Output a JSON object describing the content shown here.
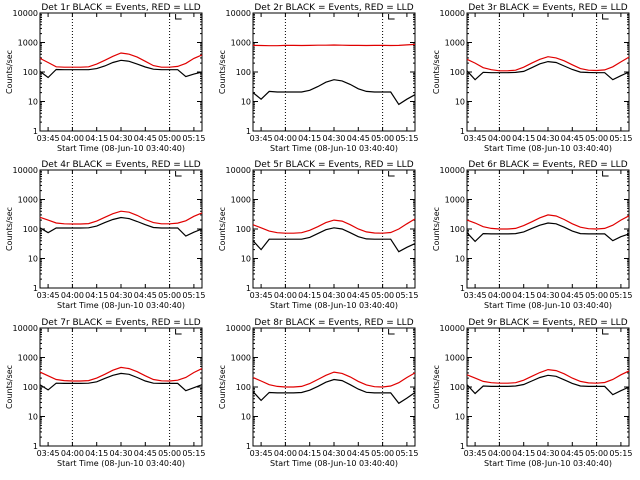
{
  "colors": {
    "events": "#000000",
    "lld": "#e00000",
    "frame": "#000000",
    "background": "#ffffff"
  },
  "x_ticks": [
    "03:45",
    "04:00",
    "04:15",
    "04:30",
    "04:45",
    "05:00",
    "05:15"
  ],
  "y_ticks": [
    "1",
    "10",
    "100",
    "1000",
    "10000"
  ],
  "chart_data": [
    {
      "type": "line",
      "title": "Det 1r BLACK = Events, RED = LLD",
      "xlabel": "Start Time (08-Jun-10 03:40:40)",
      "ylabel": "Counts/sec",
      "x_range": [
        "03:40",
        "05:20"
      ],
      "ylim": [
        1,
        10000
      ],
      "y_scale": "log",
      "grid": false,
      "vlines": [
        "04:00",
        "05:00"
      ],
      "legend": "none",
      "x": [
        "03:40",
        "03:45",
        "03:50",
        "03:55",
        "04:00",
        "04:05",
        "04:10",
        "04:15",
        "04:20",
        "04:25",
        "04:30",
        "04:35",
        "04:40",
        "04:45",
        "04:50",
        "04:55",
        "05:00",
        "05:05",
        "05:10",
        "05:15",
        "05:20"
      ],
      "series": [
        {
          "color": "black",
          "values": [
            105,
            65,
            122,
            120,
            120,
            120,
            120,
            130,
            160,
            210,
            250,
            230,
            185,
            148,
            124,
            120,
            120,
            120,
            70,
            85,
            100
          ]
        },
        {
          "color": "red",
          "values": [
            290,
            210,
            150,
            145,
            145,
            145,
            150,
            185,
            250,
            340,
            440,
            400,
            320,
            230,
            165,
            145,
            145,
            155,
            195,
            290,
            380
          ]
        }
      ]
    },
    {
      "type": "line",
      "title": "Det 2r BLACK = Events, RED = LLD",
      "xlabel": "Start Time (08-Jun-10 03:40:40)",
      "ylabel": "Counts/sec",
      "x_range": [
        "03:40",
        "05:20"
      ],
      "ylim": [
        1,
        10000
      ],
      "y_scale": "log",
      "grid": false,
      "vlines": [
        "04:00",
        "05:00"
      ],
      "legend": "none",
      "x": [
        "03:40",
        "03:45",
        "03:50",
        "03:55",
        "04:00",
        "04:05",
        "04:10",
        "04:15",
        "04:20",
        "04:25",
        "04:30",
        "04:35",
        "04:40",
        "04:45",
        "04:50",
        "04:55",
        "05:00",
        "05:05",
        "05:10",
        "05:15",
        "05:20"
      ],
      "series": [
        {
          "color": "black",
          "values": [
            20,
            12,
            22,
            21,
            21,
            21,
            21,
            24,
            32,
            45,
            55,
            50,
            38,
            27,
            22,
            21,
            21,
            21,
            8,
            12,
            17
          ]
        },
        {
          "color": "red",
          "values": [
            800,
            790,
            780,
            780,
            800,
            800,
            790,
            800,
            810,
            810,
            820,
            810,
            800,
            800,
            790,
            800,
            800,
            790,
            800,
            830,
            860
          ]
        }
      ]
    },
    {
      "type": "line",
      "title": "Det 3r BLACK = Events, RED = LLD",
      "xlabel": "Start Time (08-Jun-10 03:40:40)",
      "ylabel": "Counts/sec",
      "x_range": [
        "03:40",
        "05:20"
      ],
      "ylim": [
        1,
        10000
      ],
      "y_scale": "log",
      "grid": false,
      "vlines": [
        "04:00",
        "05:00"
      ],
      "legend": "none",
      "x": [
        "03:40",
        "03:45",
        "03:50",
        "03:55",
        "04:00",
        "04:05",
        "04:10",
        "04:15",
        "04:20",
        "04:25",
        "04:30",
        "04:35",
        "04:40",
        "04:45",
        "04:50",
        "04:55",
        "05:00",
        "05:05",
        "05:10",
        "05:15",
        "05:20"
      ],
      "series": [
        {
          "color": "black",
          "values": [
            110,
            55,
            98,
            95,
            95,
            95,
            97,
            105,
            140,
            190,
            225,
            210,
            160,
            122,
            99,
            96,
            95,
            95,
            55,
            75,
            100
          ]
        },
        {
          "color": "red",
          "values": [
            270,
            200,
            140,
            120,
            110,
            110,
            115,
            145,
            200,
            270,
            330,
            300,
            240,
            175,
            130,
            115,
            112,
            118,
            150,
            220,
            320
          ]
        }
      ]
    },
    {
      "type": "line",
      "title": "Det 4r BLACK = Events, RED = LLD",
      "xlabel": "Start Time (08-Jun-10 03:40:40)",
      "ylabel": "Counts/sec",
      "x_range": [
        "03:40",
        "05:20"
      ],
      "ylim": [
        1,
        10000
      ],
      "y_scale": "log",
      "grid": false,
      "vlines": [
        "04:00",
        "05:00"
      ],
      "legend": "none",
      "x": [
        "03:40",
        "03:45",
        "03:50",
        "03:55",
        "04:00",
        "04:05",
        "04:10",
        "04:15",
        "04:20",
        "04:25",
        "04:30",
        "04:35",
        "04:40",
        "04:45",
        "04:50",
        "04:55",
        "05:00",
        "05:05",
        "05:10",
        "05:15",
        "05:20"
      ],
      "series": [
        {
          "color": "black",
          "values": [
            110,
            75,
            108,
            108,
            108,
            108,
            110,
            125,
            165,
            210,
            245,
            225,
            180,
            140,
            112,
            108,
            108,
            108,
            58,
            78,
            100
          ]
        },
        {
          "color": "red",
          "values": [
            250,
            200,
            160,
            150,
            148,
            148,
            152,
            185,
            250,
            330,
            400,
            370,
            290,
            210,
            165,
            150,
            150,
            158,
            190,
            270,
            350
          ]
        }
      ]
    },
    {
      "type": "line",
      "title": "Det 5r BLACK = Events, RED = LLD",
      "xlabel": "Start Time (08-Jun-10 03:40:40)",
      "ylabel": "Counts/sec",
      "x_range": [
        "03:40",
        "05:20"
      ],
      "ylim": [
        1,
        10000
      ],
      "y_scale": "log",
      "grid": false,
      "vlines": [
        "04:00",
        "05:00"
      ],
      "legend": "none",
      "x": [
        "03:40",
        "03:45",
        "03:50",
        "03:55",
        "04:00",
        "04:05",
        "04:10",
        "04:15",
        "04:20",
        "04:25",
        "04:30",
        "04:35",
        "04:40",
        "04:45",
        "04:50",
        "04:55",
        "05:00",
        "05:05",
        "05:10",
        "05:15",
        "05:20"
      ],
      "series": [
        {
          "color": "black",
          "values": [
            40,
            20,
            45,
            45,
            45,
            45,
            45,
            52,
            70,
            95,
            110,
            100,
            75,
            55,
            46,
            45,
            45,
            45,
            17,
            24,
            32
          ]
        },
        {
          "color": "red",
          "values": [
            140,
            110,
            85,
            75,
            72,
            72,
            75,
            90,
            120,
            165,
            200,
            185,
            140,
            100,
            80,
            73,
            72,
            76,
            100,
            150,
            220
          ]
        }
      ]
    },
    {
      "type": "line",
      "title": "Det 6r BLACK = Events, RED = LLD",
      "xlabel": "Start Time (08-Jun-10 03:40:40)",
      "ylabel": "Counts/sec",
      "x_range": [
        "03:40",
        "05:20"
      ],
      "ylim": [
        1,
        10000
      ],
      "y_scale": "log",
      "grid": false,
      "vlines": [
        "04:00",
        "05:00"
      ],
      "legend": "none",
      "x": [
        "03:40",
        "03:45",
        "03:50",
        "03:55",
        "04:00",
        "04:05",
        "04:10",
        "04:15",
        "04:20",
        "04:25",
        "04:30",
        "04:35",
        "04:40",
        "04:45",
        "04:50",
        "04:55",
        "05:00",
        "05:05",
        "05:10",
        "05:15",
        "05:20"
      ],
      "series": [
        {
          "color": "black",
          "values": [
            75,
            38,
            70,
            68,
            68,
            68,
            70,
            80,
            105,
            135,
            160,
            150,
            115,
            85,
            70,
            68,
            68,
            68,
            40,
            55,
            68
          ]
        },
        {
          "color": "red",
          "values": [
            200,
            160,
            120,
            105,
            100,
            100,
            105,
            130,
            175,
            240,
            300,
            275,
            210,
            150,
            115,
            102,
            100,
            105,
            135,
            200,
            280
          ]
        }
      ]
    },
    {
      "type": "line",
      "title": "Det 7r BLACK = Events, RED = LLD",
      "xlabel": "Start Time (08-Jun-10 03:40:40)",
      "ylabel": "Counts/sec",
      "x_range": [
        "03:40",
        "05:20"
      ],
      "ylim": [
        1,
        10000
      ],
      "y_scale": "log",
      "grid": false,
      "vlines": [
        "04:00",
        "05:00"
      ],
      "legend": "none",
      "x": [
        "03:40",
        "03:45",
        "03:50",
        "03:55",
        "04:00",
        "04:05",
        "04:10",
        "04:15",
        "04:20",
        "04:25",
        "04:30",
        "04:35",
        "04:40",
        "04:45",
        "04:50",
        "04:55",
        "05:00",
        "05:05",
        "05:10",
        "05:15",
        "05:20"
      ],
      "series": [
        {
          "color": "black",
          "values": [
            120,
            80,
            135,
            132,
            132,
            132,
            135,
            150,
            195,
            250,
            290,
            270,
            210,
            160,
            135,
            132,
            132,
            132,
            75,
            95,
            120
          ]
        },
        {
          "color": "red",
          "values": [
            320,
            240,
            180,
            165,
            160,
            160,
            165,
            200,
            270,
            370,
            460,
            420,
            330,
            240,
            180,
            162,
            160,
            170,
            210,
            310,
            420
          ]
        }
      ]
    },
    {
      "type": "line",
      "title": "Det 8r BLACK = Events, RED = LLD",
      "xlabel": "Start Time (08-Jun-10 03:40:40)",
      "ylabel": "Counts/sec",
      "x_range": [
        "03:40",
        "05:20"
      ],
      "ylim": [
        1,
        10000
      ],
      "y_scale": "log",
      "grid": false,
      "vlines": [
        "04:00",
        "05:00"
      ],
      "legend": "none",
      "x": [
        "03:40",
        "03:45",
        "03:50",
        "03:55",
        "04:00",
        "04:05",
        "04:10",
        "04:15",
        "04:20",
        "04:25",
        "04:30",
        "04:35",
        "04:40",
        "04:45",
        "04:50",
        "04:55",
        "05:00",
        "05:05",
        "05:10",
        "05:15",
        "05:20"
      ],
      "series": [
        {
          "color": "black",
          "values": [
            70,
            35,
            65,
            63,
            63,
            63,
            65,
            78,
            105,
            145,
            180,
            165,
            120,
            85,
            66,
            63,
            63,
            63,
            28,
            42,
            65
          ]
        },
        {
          "color": "red",
          "values": [
            210,
            160,
            120,
            105,
            100,
            100,
            105,
            130,
            180,
            250,
            320,
            290,
            220,
            155,
            118,
            102,
            100,
            108,
            140,
            210,
            300
          ]
        }
      ]
    },
    {
      "type": "line",
      "title": "Det 9r BLACK = Events, RED = LLD",
      "xlabel": "Start Time (08-Jun-10 03:40:40)",
      "ylabel": "Counts/sec",
      "x_range": [
        "03:40",
        "05:20"
      ],
      "ylim": [
        1,
        10000
      ],
      "y_scale": "log",
      "grid": false,
      "vlines": [
        "04:00",
        "05:00"
      ],
      "legend": "none",
      "x": [
        "03:40",
        "03:45",
        "03:50",
        "03:55",
        "04:00",
        "04:05",
        "04:10",
        "04:15",
        "04:20",
        "04:25",
        "04:30",
        "04:35",
        "04:40",
        "04:45",
        "04:50",
        "04:55",
        "05:00",
        "05:05",
        "05:10",
        "05:15",
        "05:20"
      ],
      "series": [
        {
          "color": "black",
          "values": [
            120,
            60,
            108,
            105,
            105,
            105,
            108,
            122,
            160,
            210,
            250,
            230,
            175,
            132,
            108,
            105,
            105,
            105,
            55,
            75,
            100
          ]
        },
        {
          "color": "red",
          "values": [
            260,
            200,
            155,
            140,
            135,
            135,
            140,
            170,
            230,
            310,
            390,
            360,
            280,
            200,
            155,
            138,
            135,
            142,
            180,
            260,
            350
          ]
        }
      ]
    }
  ]
}
